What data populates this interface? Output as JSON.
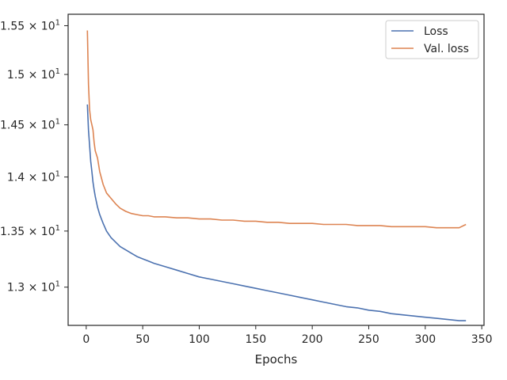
{
  "chart_data": {
    "type": "line",
    "title": "",
    "xlabel": "Epochs",
    "ylabel": "",
    "yscale": "log",
    "xlim": [
      -16,
      352
    ],
    "ylim": [
      12.67,
      15.62
    ],
    "grid": false,
    "legend_position": "top-right",
    "x_ticks": [
      {
        "value": 0,
        "label": "0"
      },
      {
        "value": 50,
        "label": "50"
      },
      {
        "value": 100,
        "label": "100"
      },
      {
        "value": 150,
        "label": "150"
      },
      {
        "value": 200,
        "label": "200"
      },
      {
        "value": 250,
        "label": "250"
      },
      {
        "value": 300,
        "label": "300"
      },
      {
        "value": 350,
        "label": "350"
      }
    ],
    "y_ticks": [
      {
        "value": 13.0,
        "mantissa": "1.3",
        "exponent": "1"
      },
      {
        "value": 13.5,
        "mantissa": "1.35",
        "exponent": "1"
      },
      {
        "value": 14.0,
        "mantissa": "1.4",
        "exponent": "1"
      },
      {
        "value": 14.5,
        "mantissa": "1.45",
        "exponent": "1"
      },
      {
        "value": 15.0,
        "mantissa": "1.5",
        "exponent": "1"
      },
      {
        "value": 15.5,
        "mantissa": "1.55",
        "exponent": "1"
      }
    ],
    "series": [
      {
        "name": "Loss",
        "color": "#4c72b0",
        "x": [
          1,
          2,
          3,
          4,
          5,
          6,
          7,
          8,
          10,
          12,
          15,
          18,
          22,
          26,
          30,
          35,
          40,
          45,
          50,
          55,
          60,
          70,
          80,
          90,
          100,
          110,
          120,
          130,
          140,
          150,
          160,
          170,
          180,
          190,
          200,
          210,
          220,
          230,
          240,
          250,
          260,
          270,
          280,
          290,
          300,
          310,
          320,
          330,
          336
        ],
        "y": [
          14.7,
          14.45,
          14.3,
          14.15,
          14.05,
          13.95,
          13.88,
          13.82,
          13.72,
          13.65,
          13.57,
          13.5,
          13.44,
          13.4,
          13.36,
          13.33,
          13.3,
          13.27,
          13.25,
          13.23,
          13.21,
          13.18,
          13.15,
          13.12,
          13.09,
          13.07,
          13.05,
          13.03,
          13.01,
          12.99,
          12.97,
          12.95,
          12.93,
          12.91,
          12.89,
          12.87,
          12.85,
          12.83,
          12.82,
          12.8,
          12.79,
          12.77,
          12.76,
          12.75,
          12.74,
          12.73,
          12.72,
          12.71,
          12.71
        ]
      },
      {
        "name": "Val. loss",
        "color": "#dd8452",
        "x": [
          1,
          2,
          3,
          4,
          5,
          6,
          7,
          8,
          10,
          12,
          15,
          18,
          22,
          26,
          30,
          35,
          40,
          45,
          50,
          55,
          60,
          70,
          80,
          90,
          100,
          110,
          120,
          130,
          140,
          150,
          160,
          170,
          180,
          190,
          200,
          210,
          220,
          230,
          240,
          250,
          260,
          270,
          280,
          290,
          300,
          310,
          320,
          330,
          336
        ],
        "y": [
          15.45,
          14.9,
          14.65,
          14.55,
          14.5,
          14.45,
          14.33,
          14.25,
          14.18,
          14.05,
          13.93,
          13.85,
          13.8,
          13.75,
          13.71,
          13.68,
          13.66,
          13.65,
          13.64,
          13.64,
          13.63,
          13.63,
          13.62,
          13.62,
          13.61,
          13.61,
          13.6,
          13.6,
          13.59,
          13.59,
          13.58,
          13.58,
          13.57,
          13.57,
          13.57,
          13.56,
          13.56,
          13.56,
          13.55,
          13.55,
          13.55,
          13.54,
          13.54,
          13.54,
          13.54,
          13.53,
          13.53,
          13.53,
          13.56
        ]
      }
    ]
  }
}
